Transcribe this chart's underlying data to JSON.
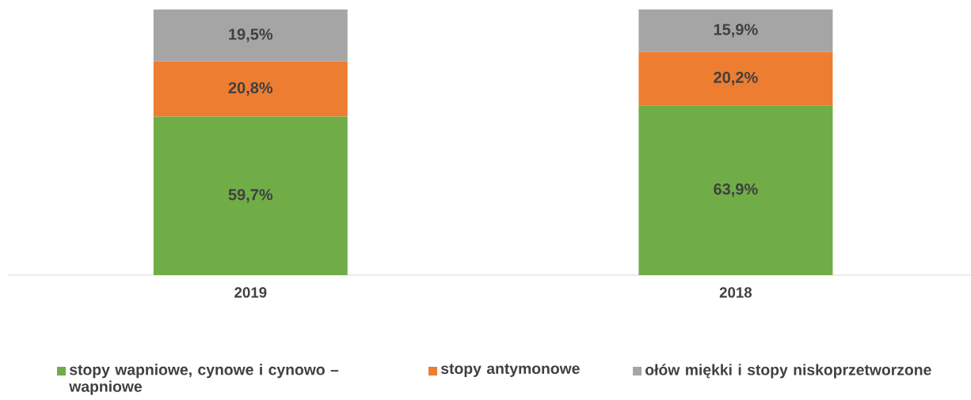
{
  "chart_data": {
    "type": "bar",
    "stacked": true,
    "categories": [
      "2019",
      "2018"
    ],
    "series": [
      {
        "name": "stopy wapniowe, cynowe i cynowo – wapniowe",
        "color": "#70ad47",
        "values": [
          59.7,
          63.9
        ],
        "value_labels": [
          "59,7%",
          "63,9%"
        ]
      },
      {
        "name": "stopy antymonowe",
        "color": "#ed7d31",
        "values": [
          20.8,
          20.2
        ],
        "value_labels": [
          "20,8%",
          "20,2%"
        ]
      },
      {
        "name": "ołów miękki i stopy niskoprzetworzone",
        "color": "#a5a5a5",
        "values": [
          19.5,
          15.9
        ],
        "value_labels": [
          "19,5%",
          "15,9%"
        ]
      }
    ],
    "legend": "bottom"
  }
}
